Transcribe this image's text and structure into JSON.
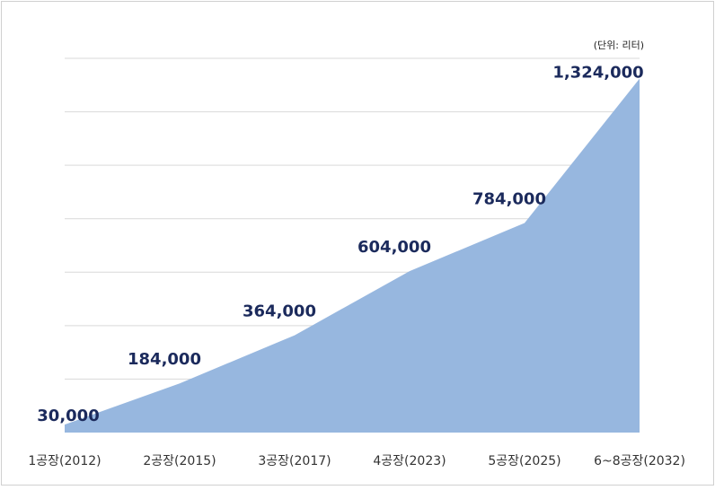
{
  "chart_data": {
    "type": "area",
    "unit_note": "(단위: 리터)",
    "categories": [
      "1공장(2012)",
      "2공장(2015)",
      "3공장(2017)",
      "4공장(2023)",
      "5공장(2025)",
      "6~8공장(2032)"
    ],
    "values": [
      30000,
      184000,
      364000,
      604000,
      784000,
      1324000
    ],
    "value_labels": [
      "30,000",
      "184,000",
      "364,000",
      "604,000",
      "784,000",
      "1,324,000"
    ],
    "color": "#97b7df",
    "label_color": "#1b2a5c",
    "ylim": [
      0,
      1400000
    ],
    "yticks": [
      200000,
      400000,
      600000,
      800000,
      1000000,
      1200000,
      1400000
    ],
    "grid": true
  }
}
